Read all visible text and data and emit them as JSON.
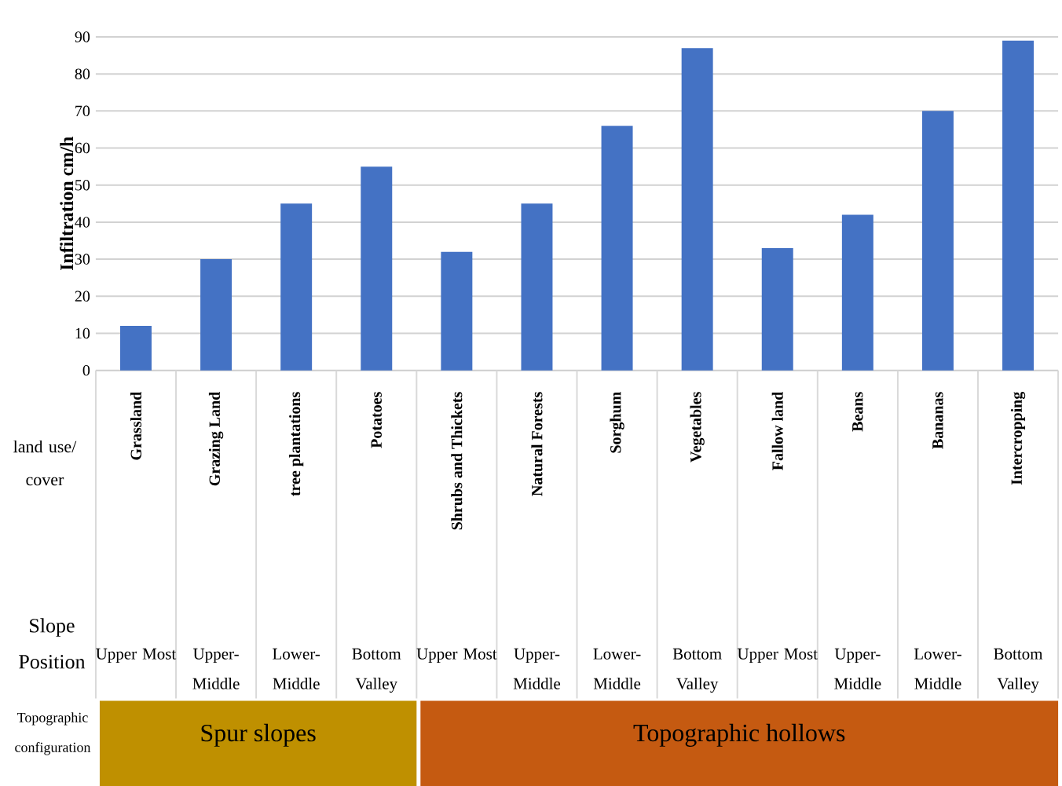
{
  "chart_data": {
    "type": "bar",
    "ylabel": "Infiltration  cm/h",
    "categories": [
      "Grassland",
      "Grazing Land",
      "tree plantations",
      "Potatoes",
      "Shrubs and Thickets",
      "Natural Forests",
      "Sorghum",
      "Vegetables",
      "Fallow land",
      "Beans",
      "Bananas",
      "Intercropping"
    ],
    "values": [
      12,
      30,
      45,
      55,
      32,
      45,
      66,
      87,
      33,
      42,
      70,
      89
    ],
    "color": "#4472c4",
    "ylim": [
      0,
      90
    ],
    "yticks": [
      0,
      10,
      20,
      30,
      40,
      50,
      60,
      70,
      80,
      90
    ],
    "grid": "y",
    "annotations": [
      "land use/ cover",
      "Slope Position",
      "Topographic configuration",
      "Upper Most",
      "Upper-Middle",
      "Lower-Middle",
      "Bottom Valley",
      "Upper Most",
      "Upper-Middle",
      "Lower-Middle",
      "Bottom Valley",
      "Upper Most",
      "Upper-Middle",
      "Lower-Middle",
      "Bottom Valley",
      "Spur slopes",
      "Topographic hollows"
    ]
  }
}
